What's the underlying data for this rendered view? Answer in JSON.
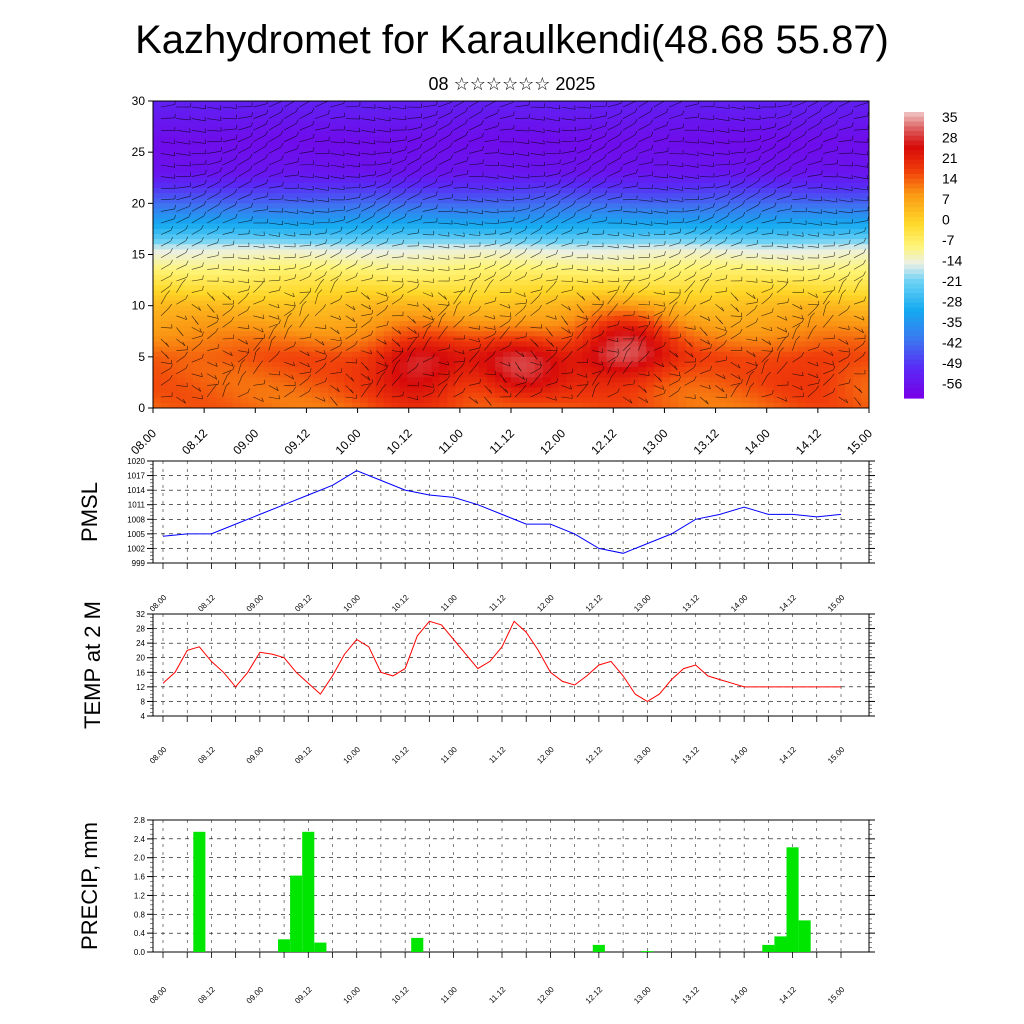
{
  "header": {
    "title": "Kazhydromet for Karaulkendi(48.68 55.87)",
    "subtitle": "08 ☆☆☆☆☆☆ 2025"
  },
  "x_ticks": [
    "08.00",
    "08.12",
    "09.00",
    "09.12",
    "10.00",
    "10.12",
    "11.00",
    "11.12",
    "12.00",
    "12.12",
    "13.00",
    "13.12",
    "14.00",
    "14.12",
    "15.00"
  ],
  "colors": {
    "pmsl": "#0000ff",
    "temp": "#ff0000",
    "precip": "#00e600"
  },
  "chart_data": [
    {
      "type": "heatmap",
      "name": "temperature-wind-cross-section",
      "y_ticks": [
        "0",
        "5",
        "10",
        "15",
        "20",
        "25",
        "30"
      ],
      "ylim": [
        0,
        30
      ],
      "colorbar_labels": [
        "35",
        "28",
        "21",
        "14",
        "7",
        "0",
        "-7",
        "-14",
        "-21",
        "-28",
        "-35",
        "-42",
        "-49",
        "-56"
      ],
      "colorbar_range": [
        -60,
        38
      ],
      "vertical_profile": [
        {
          "h": 0,
          "t": 14
        },
        {
          "h": 5,
          "t": 16
        },
        {
          "h": 10,
          "t": 4
        },
        {
          "h": 13,
          "t": -6
        },
        {
          "h": 15.5,
          "t": -14
        },
        {
          "h": 17,
          "t": -25
        },
        {
          "h": 20,
          "t": -42
        },
        {
          "h": 23,
          "t": -55
        },
        {
          "h": 26,
          "t": -57
        },
        {
          "h": 30,
          "t": -52
        }
      ],
      "warm_cores": [
        {
          "day": 2.6,
          "h": 4,
          "dt": 14
        },
        {
          "day": 3.6,
          "h": 4,
          "dt": 13
        },
        {
          "day": 4.6,
          "h": 6,
          "dt": 18
        },
        {
          "day": 6.5,
          "h": 4,
          "dt": 4
        }
      ]
    },
    {
      "type": "line",
      "name": "PMSL",
      "ylabel": "PMSL",
      "y_ticks": [
        "1020",
        "1017",
        "1014",
        "1011",
        "1008",
        "1005",
        "1002",
        "999"
      ],
      "ylim": [
        999,
        1020
      ],
      "x_days": [
        0,
        0.25,
        0.5,
        0.75,
        1,
        1.25,
        1.5,
        1.75,
        2,
        2.25,
        2.5,
        2.75,
        3,
        3.25,
        3.5,
        3.75,
        4,
        4.25,
        4.5,
        4.75,
        5,
        5.25,
        5.5,
        5.75,
        6,
        6.25,
        6.5,
        6.75,
        7
      ],
      "values": [
        1004.5,
        1005,
        1005,
        1007,
        1009,
        1011,
        1013,
        1015,
        1018,
        1016,
        1014,
        1013,
        1012.5,
        1011,
        1009,
        1007,
        1007,
        1005,
        1002,
        1001,
        1003,
        1005,
        1008,
        1009,
        1010.5,
        1009,
        1009,
        1008.5,
        1009
      ]
    },
    {
      "type": "line",
      "name": "TEMP at 2 M",
      "ylabel": "TEMP at 2 M",
      "y_ticks": [
        "32",
        "28",
        "24",
        "20",
        "16",
        "12",
        "8",
        "4"
      ],
      "ylim": [
        4,
        32
      ],
      "x_days": [
        0,
        0.125,
        0.25,
        0.375,
        0.5,
        0.625,
        0.75,
        0.875,
        1,
        1.125,
        1.25,
        1.375,
        1.5,
        1.625,
        1.75,
        1.875,
        2,
        2.125,
        2.25,
        2.375,
        2.5,
        2.625,
        2.75,
        2.875,
        3,
        3.125,
        3.25,
        3.375,
        3.5,
        3.625,
        3.75,
        3.875,
        4,
        4.125,
        4.25,
        4.375,
        4.5,
        4.625,
        4.75,
        4.875,
        5,
        5.125,
        5.25,
        5.375,
        5.5,
        5.625,
        5.75,
        5.875,
        6,
        6.125,
        6.25,
        6.375,
        6.5,
        6.625,
        6.75,
        6.875,
        7
      ],
      "values": [
        13,
        16,
        22,
        23,
        19,
        16,
        12,
        16,
        21.5,
        21,
        20,
        16,
        13,
        10,
        15,
        21,
        25,
        23,
        16,
        15,
        17,
        26,
        30,
        29,
        25,
        21,
        17,
        19,
        23,
        30,
        27,
        22,
        16,
        13.5,
        12.5,
        15,
        18,
        19,
        15,
        10,
        8,
        10,
        14,
        17,
        18,
        15,
        14,
        13,
        12,
        12,
        12,
        12,
        12,
        12,
        12,
        12,
        12
      ]
    },
    {
      "type": "bar",
      "name": "PRECIP, mm",
      "ylabel": "PRECIP, mm",
      "y_ticks": [
        "2.8",
        "2.4",
        "2.0",
        "1.6",
        "1.2",
        "0.8",
        "0.4",
        "0.0"
      ],
      "ylim": [
        0,
        2.8
      ],
      "bar_width_days": 0.125,
      "x_days": [
        0.375,
        1.25,
        1.375,
        1.5,
        1.625,
        2.625,
        4.5,
        5.0,
        6.25,
        6.375,
        6.5,
        6.625
      ],
      "values": [
        2.55,
        0.27,
        1.62,
        2.55,
        0.2,
        0.3,
        0.15,
        0.02,
        0.15,
        0.33,
        2.22,
        0.67
      ]
    }
  ]
}
